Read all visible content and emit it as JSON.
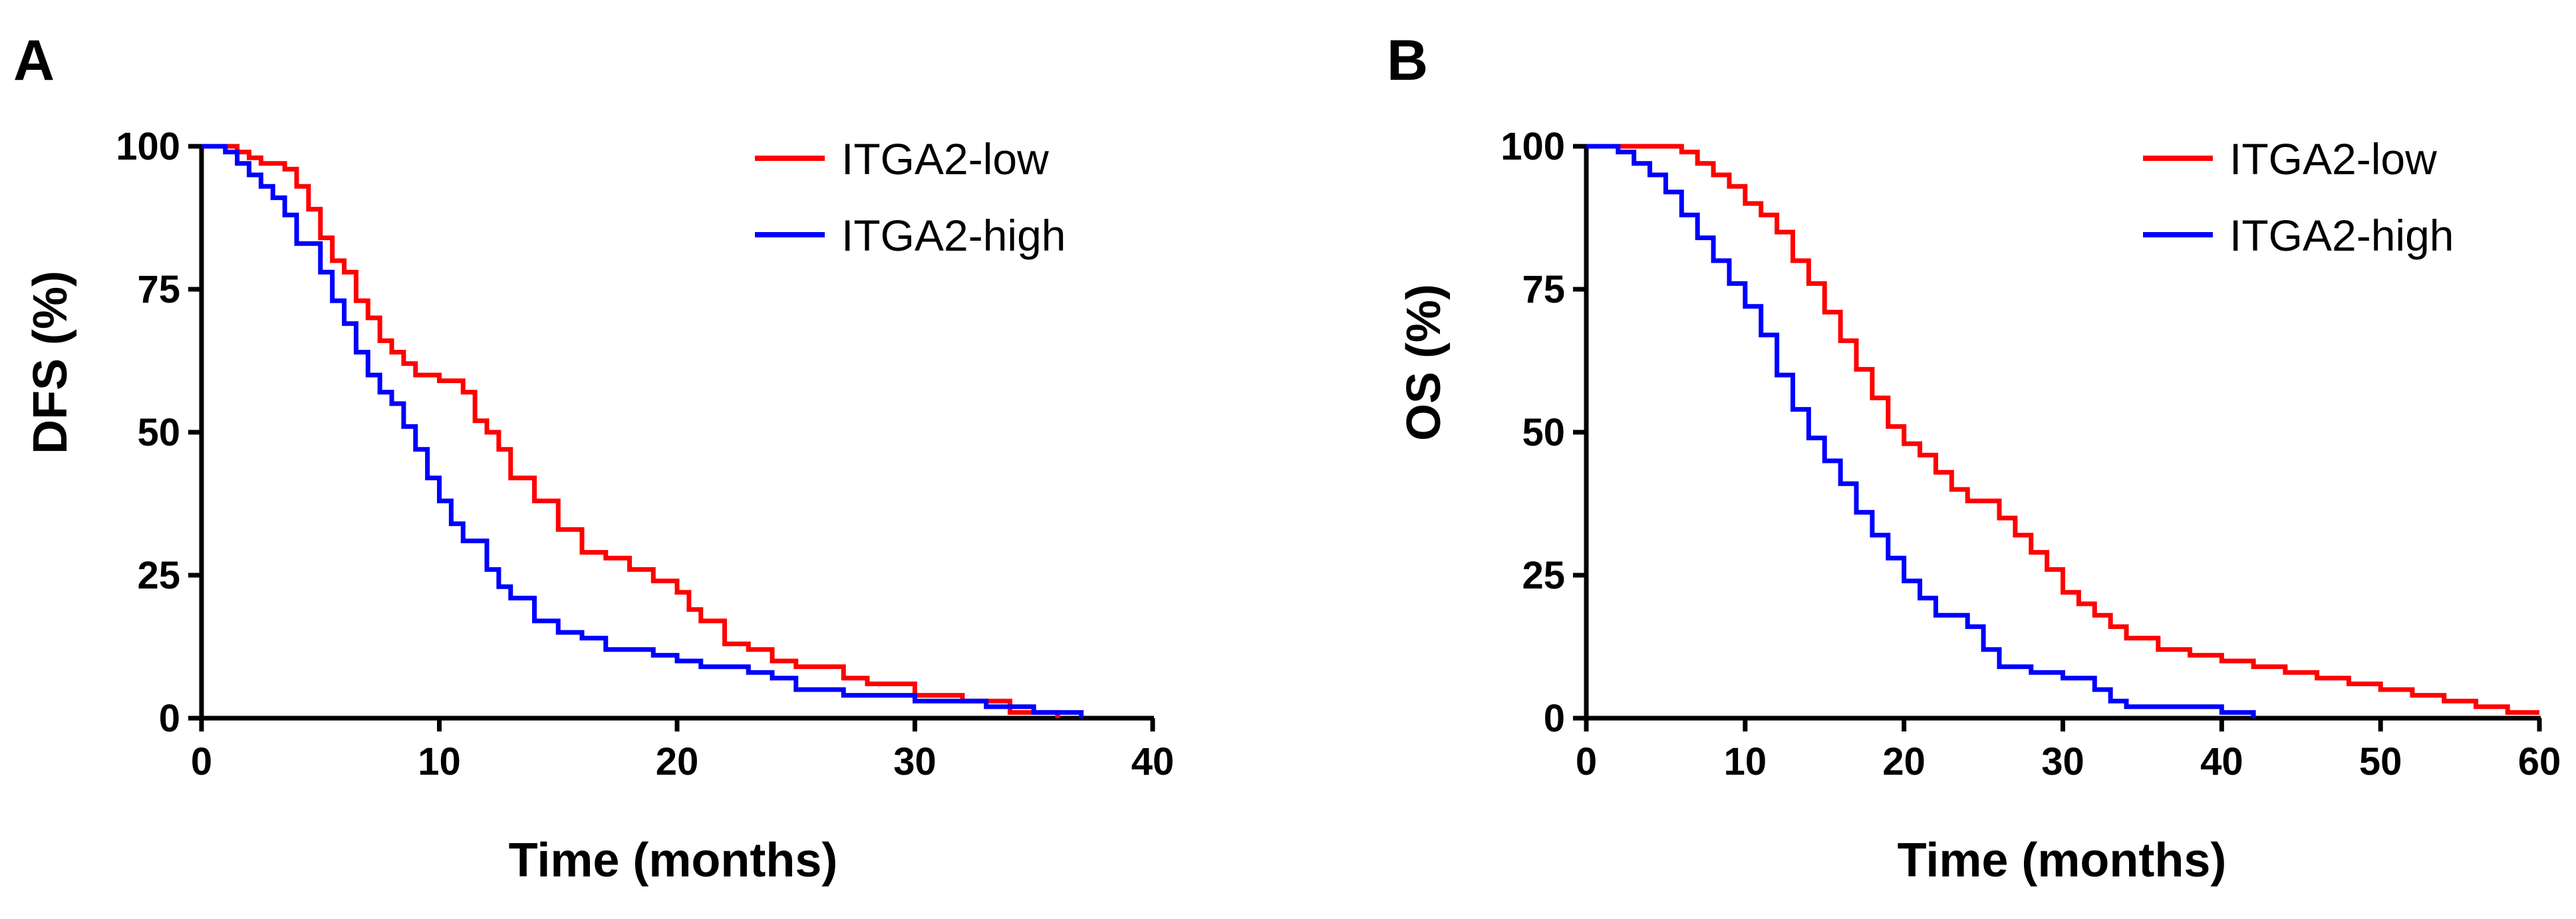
{
  "chart_data": [
    {
      "panel": "A",
      "type": "line",
      "xlabel": "Time (months)",
      "ylabel": "DFS (%)",
      "xlim": [
        0,
        40
      ],
      "ylim": [
        0,
        100
      ],
      "xticks": [
        "0",
        "10",
        "20",
        "30",
        "40"
      ],
      "yticks": [
        "0",
        "25",
        "50",
        "75",
        "100"
      ],
      "legend_position": "top-right",
      "series": [
        {
          "name": "ITGA2-low",
          "color": "#ff0000",
          "x": [
            0,
            1,
            1.5,
            2,
            2.5,
            3,
            3.5,
            4,
            4.5,
            5,
            5.5,
            6,
            6.5,
            7,
            7.5,
            8,
            8.5,
            9,
            10,
            11,
            11.5,
            12,
            12.5,
            13,
            14,
            15,
            16,
            17,
            18,
            19,
            20,
            20.5,
            21,
            22,
            23,
            24,
            25,
            27,
            28,
            30,
            32,
            34,
            36
          ],
          "y": [
            100,
            100,
            99,
            98,
            97,
            97,
            96,
            93,
            89,
            84,
            80,
            78,
            73,
            70,
            66,
            64,
            62,
            60,
            59,
            57,
            52,
            50,
            47,
            42,
            38,
            33,
            29,
            28,
            26,
            24,
            22,
            19,
            17,
            13,
            12,
            10,
            9,
            7,
            6,
            4,
            3,
            1,
            0
          ]
        },
        {
          "name": "ITGA2-high",
          "color": "#0000ff",
          "x": [
            0,
            0.5,
            1,
            1.5,
            2,
            2.5,
            3,
            3.5,
            4,
            5,
            5.5,
            6,
            6.5,
            7,
            7.5,
            8,
            8.5,
            9,
            9.5,
            10,
            10.5,
            11,
            12,
            12.5,
            13,
            14,
            15,
            16,
            17,
            19,
            20,
            21,
            23,
            24,
            25,
            27,
            30,
            33,
            35,
            37
          ],
          "y": [
            100,
            100,
            99,
            97,
            95,
            93,
            91,
            88,
            83,
            78,
            73,
            69,
            64,
            60,
            57,
            55,
            51,
            47,
            42,
            38,
            34,
            31,
            26,
            23,
            21,
            17,
            15,
            14,
            12,
            11,
            10,
            9,
            8,
            7,
            5,
            4,
            3,
            2,
            1,
            0
          ]
        }
      ]
    },
    {
      "panel": "B",
      "type": "line",
      "xlabel": "Time (months)",
      "ylabel": "OS (%)",
      "xlim": [
        0,
        60
      ],
      "ylim": [
        0,
        100
      ],
      "xticks": [
        "0",
        "10",
        "20",
        "30",
        "40",
        "50",
        "60"
      ],
      "yticks": [
        "0",
        "25",
        "50",
        "75",
        "100"
      ],
      "legend_position": "top-right",
      "series": [
        {
          "name": "ITGA2-low",
          "color": "#ff0000",
          "x": [
            0,
            4,
            6,
            7,
            8,
            9,
            10,
            11,
            12,
            13,
            14,
            15,
            16,
            17,
            18,
            19,
            20,
            21,
            22,
            23,
            24,
            26,
            27,
            28,
            29,
            30,
            31,
            32,
            33,
            34,
            36,
            38,
            40,
            42,
            44,
            46,
            48,
            50,
            52,
            54,
            56,
            58,
            60
          ],
          "y": [
            100,
            100,
            99,
            97,
            95,
            93,
            90,
            88,
            85,
            80,
            76,
            71,
            66,
            61,
            56,
            51,
            48,
            46,
            43,
            40,
            38,
            35,
            32,
            29,
            26,
            22,
            20,
            18,
            16,
            14,
            12,
            11,
            10,
            9,
            8,
            7,
            6,
            5,
            4,
            3,
            2,
            1,
            1
          ]
        },
        {
          "name": "ITGA2-high",
          "color": "#0000ff",
          "x": [
            0,
            2,
            3,
            4,
            5,
            6,
            7,
            8,
            9,
            10,
            11,
            12,
            13,
            14,
            15,
            16,
            17,
            18,
            19,
            20,
            21,
            22,
            24,
            25,
            26,
            28,
            30,
            32,
            33,
            34,
            36,
            38,
            40,
            42
          ],
          "y": [
            100,
            99,
            97,
            95,
            92,
            88,
            84,
            80,
            76,
            72,
            67,
            60,
            54,
            49,
            45,
            41,
            36,
            32,
            28,
            24,
            21,
            18,
            16,
            12,
            9,
            8,
            7,
            5,
            3,
            2,
            2,
            2,
            1,
            0
          ]
        }
      ]
    }
  ],
  "panels": {
    "A": {
      "letter": "A"
    },
    "B": {
      "letter": "B"
    }
  }
}
